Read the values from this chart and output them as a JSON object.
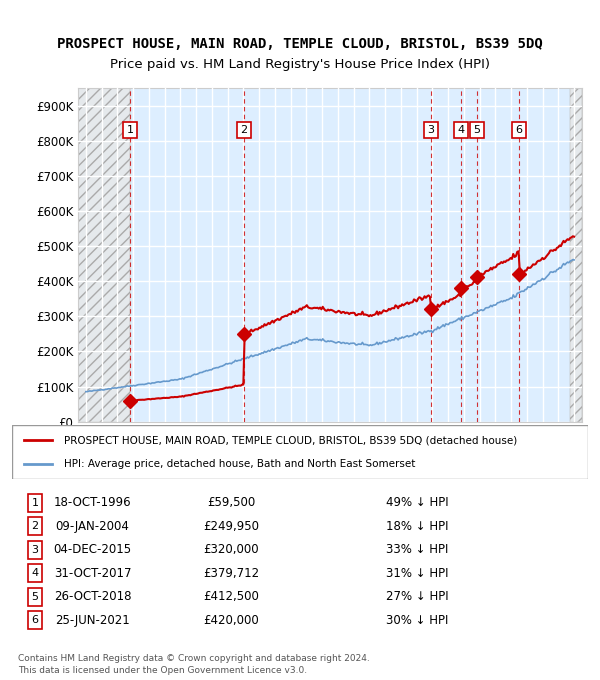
{
  "title1": "PROSPECT HOUSE, MAIN ROAD, TEMPLE CLOUD, BRISTOL, BS39 5DQ",
  "title2": "Price paid vs. HM Land Registry's House Price Index (HPI)",
  "legend_line1": "PROSPECT HOUSE, MAIN ROAD, TEMPLE CLOUD, BRISTOL, BS39 5DQ (detached house)",
  "legend_line2": "HPI: Average price, detached house, Bath and North East Somerset",
  "footer1": "Contains HM Land Registry data © Crown copyright and database right 2024.",
  "footer2": "This data is licensed under the Open Government Licence v3.0.",
  "sales": [
    {
      "label": 1,
      "date_num": 1996.8,
      "price": 59500,
      "desc": "18-OCT-1996",
      "pct": "49% ↓ HPI"
    },
    {
      "label": 2,
      "date_num": 2004.03,
      "price": 249950,
      "desc": "09-JAN-2004",
      "pct": "18% ↓ HPI"
    },
    {
      "label": 3,
      "date_num": 2015.92,
      "price": 320000,
      "desc": "04-DEC-2015",
      "pct": "33% ↓ HPI"
    },
    {
      "label": 4,
      "date_num": 2017.83,
      "price": 379712,
      "desc": "31-OCT-2017",
      "pct": "31% ↓ HPI"
    },
    {
      "label": 5,
      "date_num": 2018.82,
      "price": 412500,
      "desc": "26-OCT-2018",
      "pct": "27% ↓ HPI"
    },
    {
      "label": 6,
      "date_num": 2021.48,
      "price": 420000,
      "desc": "25-JUN-2021",
      "pct": "30% ↓ HPI"
    }
  ],
  "hatch_start": 1993.5,
  "hatch_end": 1996.8,
  "hatch_end2": 2024.8,
  "xlim": [
    1993.5,
    2025.5
  ],
  "ylim": [
    0,
    950000
  ],
  "yticks": [
    0,
    100000,
    200000,
    300000,
    400000,
    500000,
    600000,
    700000,
    800000,
    900000
  ],
  "hpi_color": "#6699cc",
  "sale_color": "#cc0000",
  "hatch_color": "#cccccc",
  "bg_color": "#ddeeff",
  "grid_color": "#ffffff"
}
